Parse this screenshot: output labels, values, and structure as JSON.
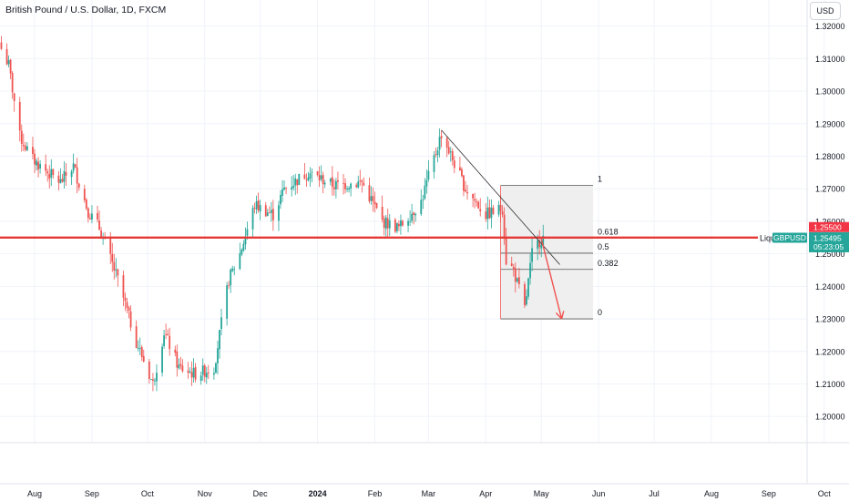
{
  "header": {
    "title": "British Pound / U.S. Dollar, 1D, FXCM",
    "currency_button": "USD"
  },
  "colors": {
    "up": "#26a69a",
    "down": "#ef5350",
    "level_line": "#e53935",
    "price_badge_bg": "#26a69a",
    "level_badge_bg": "#f23645",
    "fib_fill": "#efefef",
    "grid": "#f0f3fa",
    "text": "#131722"
  },
  "labels": {
    "liquidity_label": "Liqu",
    "symbol_badge": "GBPUSD",
    "current_price": "1.25495",
    "countdown": "05:23:05",
    "level_price": "1.25500"
  },
  "chart_data": {
    "type": "candlestick",
    "title": "British Pound / U.S. Dollar, 1D, FXCM",
    "y_ticks": [
      "1.32000",
      "1.31000",
      "1.30000",
      "1.29000",
      "1.28000",
      "1.27000",
      "1.26000",
      "1.25000",
      "1.24000",
      "1.23000",
      "1.22000",
      "1.21000",
      "1.20000"
    ],
    "ylim": [
      1.1965,
      1.3251
    ],
    "x_ticks": [
      "Aug",
      "Sep",
      "Oct",
      "Nov",
      "Dec",
      "2024",
      "Feb",
      "Mar",
      "Apr",
      "May",
      "Jun",
      "Jul",
      "Aug",
      "Sep",
      "Oct"
    ],
    "x_tick_bold": [
      false,
      false,
      false,
      false,
      false,
      true,
      false,
      false,
      false,
      false,
      false,
      false,
      false,
      false,
      false
    ],
    "price_path": [
      [
        "2023-07-14",
        1.313
      ],
      [
        "2023-07-18",
        1.308
      ],
      [
        "2023-07-24",
        1.286
      ],
      [
        "2023-07-31",
        1.279
      ],
      [
        "2023-08-08",
        1.275
      ],
      [
        "2023-08-15",
        1.272
      ],
      [
        "2023-08-22",
        1.277
      ],
      [
        "2023-08-30",
        1.263
      ],
      [
        "2023-09-05",
        1.258
      ],
      [
        "2023-09-15",
        1.242
      ],
      [
        "2023-09-25",
        1.223
      ],
      [
        "2023-10-04",
        1.21
      ],
      [
        "2023-10-10",
        1.226
      ],
      [
        "2023-10-18",
        1.215
      ],
      [
        "2023-10-27",
        1.213
      ],
      [
        "2023-11-06",
        1.215
      ],
      [
        "2023-11-14",
        1.242
      ],
      [
        "2023-11-20",
        1.25
      ],
      [
        "2023-11-28",
        1.265
      ],
      [
        "2023-12-08",
        1.262
      ],
      [
        "2023-12-14",
        1.27
      ],
      [
        "2023-12-27",
        1.275
      ],
      [
        "2024-01-10",
        1.271
      ],
      [
        "2024-01-25",
        1.272
      ],
      [
        "2024-02-05",
        1.26
      ],
      [
        "2024-02-14",
        1.258
      ],
      [
        "2024-02-26",
        1.266
      ],
      [
        "2024-03-08",
        1.287
      ],
      [
        "2024-03-14",
        1.279
      ],
      [
        "2024-03-21",
        1.27
      ],
      [
        "2024-04-01",
        1.262
      ],
      [
        "2024-04-10",
        1.264
      ],
      [
        "2024-04-12",
        1.248
      ],
      [
        "2024-04-16",
        1.245
      ],
      [
        "2024-04-22",
        1.233
      ],
      [
        "2024-04-26",
        1.25
      ],
      [
        "2024-04-30",
        1.254
      ],
      [
        "2024-05-02",
        1.255
      ]
    ],
    "horizontal_level": 1.255,
    "current_price": 1.25495,
    "trendline": {
      "from": [
        "2024-03-08",
        1.288
      ],
      "to": [
        "2024-05-11",
        1.2467
      ]
    },
    "fibonacci": {
      "start": "2024-04-09",
      "end": "2024-05-29",
      "levels": [
        {
          "ratio": "1",
          "price": 1.271
        },
        {
          "ratio": "0.618",
          "price": 1.2548
        },
        {
          "ratio": "0.5",
          "price": 1.2502
        },
        {
          "ratio": "0.382",
          "price": 1.2452
        },
        {
          "ratio": "0",
          "price": 1.23
        }
      ]
    },
    "projection_arrow": {
      "from": [
        "2024-05-01",
        1.2546
      ],
      "to": [
        "2024-05-12",
        1.23
      ]
    }
  }
}
